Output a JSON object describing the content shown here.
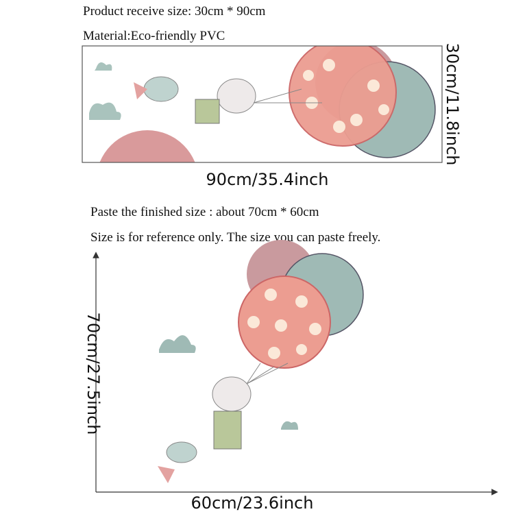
{
  "product": {
    "receive_size": "Product receive size: 30cm * 90cm",
    "material": "Material:Eco-friendly PVC",
    "height_label": "30cm/11.8inch",
    "width_label": "90cm/35.4inch"
  },
  "pasted": {
    "finished_size": "Paste the finished size : about 70cm * 60cm",
    "note": "Size is for reference only. The size you can paste freely.",
    "height_label": "70cm/27.5inch",
    "width_label": "60cm/23.6inch"
  }
}
